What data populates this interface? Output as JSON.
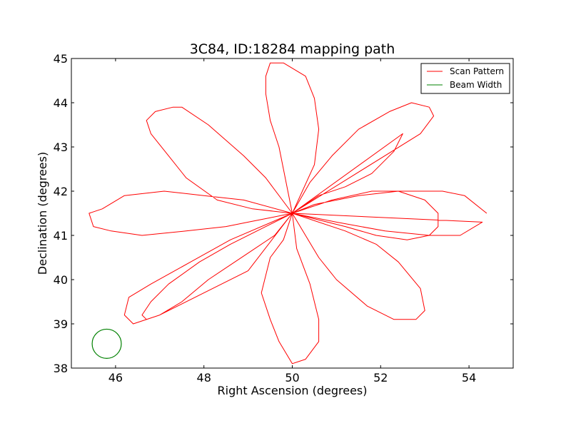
{
  "chart_data": {
    "type": "line",
    "title": "3C84, ID:18284 mapping path",
    "xlabel": "Right Ascension (degrees)",
    "ylabel": "Declination (degrees)",
    "xlim": [
      45,
      55
    ],
    "ylim": [
      38,
      45
    ],
    "xticks": [
      46,
      48,
      50,
      52,
      54
    ],
    "yticks": [
      38,
      39,
      40,
      41,
      42,
      43,
      44,
      45
    ],
    "grid": false,
    "legend_position": "top-right",
    "series": [
      {
        "name": "Scan Pattern",
        "color": "#ff0000",
        "x": [
          54.4,
          53.9,
          53.4,
          52.4,
          51.5,
          50.5,
          50.0,
          49.5,
          49.0,
          48.5,
          47.6,
          46.6,
          45.9,
          45.5,
          45.4,
          45.7,
          46.2,
          47.1,
          48.0,
          48.9,
          50.0,
          51.0,
          52.1,
          53.1,
          53.8,
          54.3,
          50.0,
          52.9,
          53.2,
          53.1,
          52.7,
          52.2,
          51.5,
          50.9,
          50.4,
          50.0,
          49.6,
          49.0,
          48.1,
          47.5,
          47.0,
          46.7,
          46.6,
          46.8,
          47.2,
          47.9,
          48.6,
          49.4,
          50.0,
          50.6,
          51.2,
          51.8,
          52.3,
          52.5,
          50.0,
          50.5,
          50.6,
          50.5,
          50.3,
          49.8,
          49.5,
          49.4,
          49.4,
          49.5,
          49.7,
          50.0,
          49.8,
          49.5,
          49.3,
          49.5,
          49.7,
          50.0,
          50.3,
          50.6,
          50.6,
          50.4,
          50.1,
          50.0,
          49.4,
          48.9,
          48.1,
          47.5,
          47.3,
          46.9,
          46.7,
          46.8,
          47.2,
          47.6,
          48.3,
          49.1,
          50.0,
          51.2,
          51.9,
          52.6,
          53.1,
          53.3,
          53.3,
          53.0,
          52.4,
          51.8,
          50.9,
          50.0,
          50.6,
          51.0,
          51.7,
          52.3,
          52.8,
          53.0,
          52.9,
          52.4,
          51.9,
          51.2,
          50.0,
          49.0,
          48.0,
          47.0,
          46.4,
          46.2,
          46.3,
          46.8,
          47.7,
          48.6,
          50.0
        ],
        "y": [
          41.5,
          41.9,
          42.0,
          42.0,
          41.9,
          41.7,
          41.5,
          41.4,
          41.3,
          41.2,
          41.1,
          41.0,
          41.1,
          41.2,
          41.5,
          41.6,
          41.9,
          42.0,
          41.9,
          41.8,
          41.5,
          41.3,
          41.1,
          41.0,
          41.0,
          41.3,
          41.5,
          43.3,
          43.7,
          43.9,
          44.0,
          43.8,
          43.4,
          42.8,
          42.2,
          41.5,
          41.0,
          40.6,
          40.0,
          39.5,
          39.2,
          39.1,
          39.2,
          39.5,
          39.9,
          40.4,
          40.8,
          41.2,
          41.5,
          41.9,
          42.1,
          42.4,
          42.9,
          43.3,
          41.5,
          42.6,
          43.4,
          44.1,
          44.6,
          44.9,
          44.9,
          44.6,
          44.2,
          43.6,
          43.0,
          41.5,
          40.9,
          40.5,
          39.7,
          39.1,
          38.6,
          38.1,
          38.2,
          38.6,
          39.1,
          39.9,
          40.7,
          41.5,
          42.3,
          42.8,
          43.5,
          43.9,
          43.9,
          43.8,
          43.6,
          43.3,
          42.8,
          42.3,
          41.8,
          41.6,
          41.5,
          41.2,
          41.0,
          40.9,
          41.0,
          41.2,
          41.5,
          41.8,
          42.0,
          42.0,
          41.8,
          41.5,
          40.5,
          40.0,
          39.4,
          39.1,
          39.1,
          39.3,
          39.8,
          40.4,
          40.8,
          41.1,
          41.5,
          40.2,
          39.7,
          39.2,
          39.0,
          39.2,
          39.6,
          39.9,
          40.4,
          40.9,
          41.5
        ]
      },
      {
        "name": "Beam Width",
        "color": "#008000",
        "center": [
          45.8,
          38.55
        ],
        "radius": 0.33
      }
    ]
  }
}
